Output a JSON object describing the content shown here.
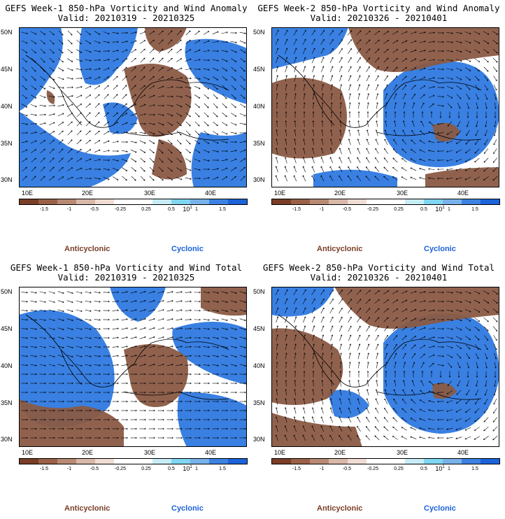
{
  "panels": [
    {
      "title": "GEFS Week-1 850-hPa Vorticity and Wind Anomaly",
      "valid": "Valid: 20210319 - 20210325"
    },
    {
      "title": "GEFS Week-2 850-hPa Vorticity and Wind Anomaly",
      "valid": "Valid: 20210326 - 20210401"
    },
    {
      "title": "GEFS Week-1 850-hPa Vorticity and Wind Total",
      "valid": "Valid: 20210319 - 20210325"
    },
    {
      "title": "GEFS Week-2 850-hPa Vorticity and Wind Total",
      "valid": "Valid: 20210326 - 20210401"
    }
  ],
  "map_axes": {
    "lat_labels": [
      "50N",
      "45N",
      "40N",
      "35N",
      "30N"
    ],
    "lon_labels": [
      "10E",
      "20E",
      "30E",
      "40E"
    ]
  },
  "colorbar": {
    "labels": [
      "-1.5",
      "-1",
      "-0.5",
      "-0.25",
      "0.25",
      "0.5",
      "1",
      "1.5"
    ],
    "multiplier": "10",
    "exponent": "1",
    "colors": [
      "#7a3d27",
      "#9a6148",
      "#b88a74",
      "#d8b8a8",
      "#efdcd3",
      "#ffffff",
      "#ffffff",
      "#c7ecf5",
      "#7fd6f0",
      "#79b2ea",
      "#3d82e2",
      "#1c62d9"
    ]
  },
  "legend": {
    "anticyclonic": "Anticyclonic",
    "cyclonic": "Cyclonic"
  },
  "colors": {
    "anticyclonic": "#8a5a45",
    "cyclonic": "#2e79e0",
    "neutral": "#ffffff"
  }
}
